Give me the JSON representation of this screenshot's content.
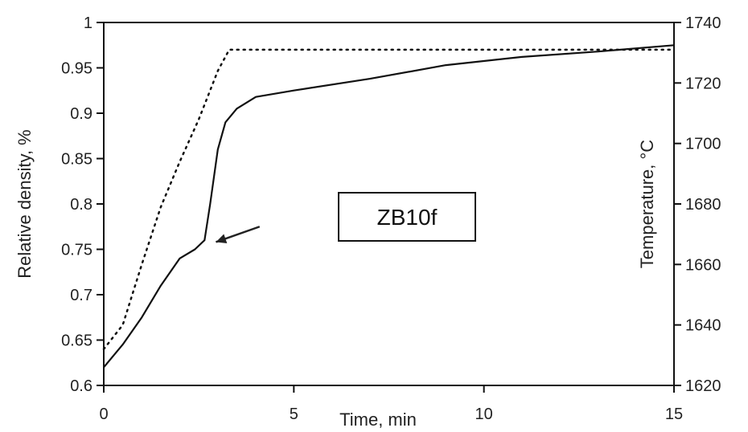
{
  "chart_data": {
    "type": "line",
    "title": "",
    "xlabel": "Time, min",
    "ylabel_left": "Relative density, %",
    "ylabel_right": "Temperature, °C",
    "xlim": [
      0,
      15
    ],
    "ylim_left": [
      0.6,
      1.0
    ],
    "ylim_right": [
      1620,
      1740
    ],
    "x_ticks": [
      0,
      5,
      10,
      15
    ],
    "y_left_ticks": [
      0.6,
      0.65,
      0.7,
      0.75,
      0.8,
      0.85,
      0.9,
      0.95,
      1
    ],
    "y_left_tick_labels": [
      "0.6",
      "0.65",
      "0.7",
      "0.75",
      "0.8",
      "0.85",
      "0.9",
      "0.95",
      "1"
    ],
    "y_right_ticks": [
      1620,
      1640,
      1660,
      1680,
      1700,
      1720,
      1740
    ],
    "grid": false,
    "legend": "none",
    "series": [
      {
        "axis": "left",
        "style": "solid",
        "color": "#111111",
        "x": [
          0,
          0.5,
          1,
          1.5,
          2,
          2.4,
          2.65,
          2.8,
          3.0,
          3.2,
          3.5,
          4.0,
          5,
          7,
          9,
          11,
          13,
          15
        ],
        "y": [
          0.62,
          0.645,
          0.675,
          0.71,
          0.74,
          0.75,
          0.76,
          0.8,
          0.86,
          0.89,
          0.905,
          0.918,
          0.925,
          0.938,
          0.953,
          0.962,
          0.968,
          0.975
        ]
      },
      {
        "axis": "right",
        "style": "dotted",
        "color": "#111111",
        "x": [
          0,
          0.5,
          1,
          1.5,
          2,
          2.5,
          3,
          3.3,
          5,
          10,
          15
        ],
        "y": [
          1632,
          1640,
          1660,
          1679,
          1694,
          1708,
          1724,
          1731,
          1731,
          1731,
          1731
        ]
      }
    ],
    "annotations": [
      {
        "type": "label-box",
        "text": "ZB10f",
        "x": 7.5,
        "y": 0.785
      },
      {
        "type": "arrow",
        "from_x": 4.1,
        "from_y": 0.775,
        "to_x": 2.95,
        "to_y": 0.758
      }
    ]
  }
}
